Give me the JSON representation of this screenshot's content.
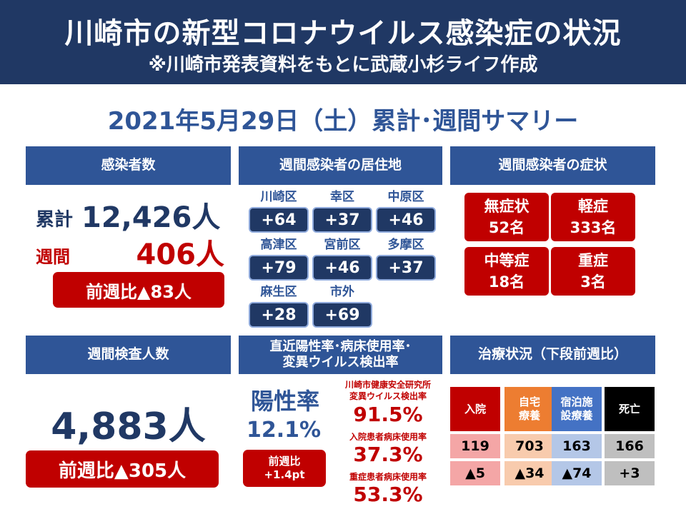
{
  "header": {
    "title": "川崎市の新型コロナウイルス感染症の状況",
    "subtitle": "※川崎市発表資料をもとに武蔵小杉ライフ作成"
  },
  "summary_title": "2021年5月29日（土）累計･週間サマリー",
  "infections": {
    "heading": "感染者数",
    "total_label": "累計",
    "total_value": "12,426人",
    "weekly_label": "週間",
    "weekly_value": "406人",
    "wow": "前週比▲83人"
  },
  "residence": {
    "heading": "週間感染者の居住地",
    "districts": [
      {
        "name": "川崎区",
        "value": "+64"
      },
      {
        "name": "幸区",
        "value": "+37"
      },
      {
        "name": "中原区",
        "value": "+46"
      },
      {
        "name": "高津区",
        "value": "+79"
      },
      {
        "name": "宮前区",
        "value": "+46"
      },
      {
        "name": "多摩区",
        "value": "+37"
      },
      {
        "name": "麻生区",
        "value": "+28"
      },
      {
        "name": "市外",
        "value": "+69"
      }
    ]
  },
  "symptoms": {
    "heading": "週間感染者の症状",
    "items": [
      {
        "label": "無症状",
        "value": "52名"
      },
      {
        "label": "軽症",
        "value": "333名"
      },
      {
        "label": "中等症",
        "value": "18名"
      },
      {
        "label": "重症",
        "value": "3名"
      }
    ]
  },
  "tests": {
    "heading": "週間検査人数",
    "value": "4,883人",
    "wow": "前週比▲305人"
  },
  "rates": {
    "heading_line1": "直近陽性率･病床使用率･",
    "heading_line2": "変異ウイルス検出率",
    "positivity_label": "陽性率",
    "positivity_value": "12.1%",
    "positivity_wow_line1": "前週比",
    "positivity_wow_line2": "+1.4pt",
    "variant_label_line1": "川崎市健康安全研究所",
    "variant_label_line2": "変異ウイルス検出率",
    "variant_value": "91.5%",
    "inpatient_label": "入院患者病床使用率",
    "inpatient_value": "37.3%",
    "severe_label": "重症患者病床使用率",
    "severe_value": "53.3%"
  },
  "treatment": {
    "heading": "治療状況（下段前週比）",
    "columns": [
      {
        "label_line1": "入院",
        "label_line2": "",
        "value": "119",
        "change": "▲5",
        "head_color": "#c00000",
        "cell_color": "#f4a6a6"
      },
      {
        "label_line1": "自宅",
        "label_line2": "療養",
        "value": "703",
        "change": "▲34",
        "head_color": "#ed7d31",
        "cell_color": "#f8cbad"
      },
      {
        "label_line1": "宿泊施",
        "label_line2": "設療養",
        "value": "163",
        "change": "▲74",
        "head_color": "#4472c4",
        "cell_color": "#b4c7e7"
      },
      {
        "label_line1": "死亡",
        "label_line2": "",
        "value": "166",
        "change": "+3",
        "head_color": "#000000",
        "cell_color": "#bfbfbf"
      }
    ]
  }
}
